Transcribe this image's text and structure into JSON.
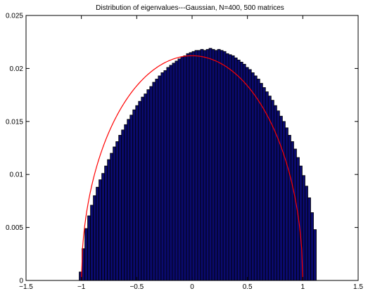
{
  "chart_data": {
    "type": "bar",
    "title": "Distribution of eigenvalues---Gaussian, N=400, 500 matrices",
    "xlabel": "",
    "ylabel": "",
    "xlim": [
      -1.5,
      1.5
    ],
    "ylim": [
      0,
      0.025
    ],
    "xticks": [
      -1.5,
      -1,
      -0.5,
      0,
      0.5,
      1,
      1.5
    ],
    "xtick_labels": [
      "−1.5",
      "−1",
      "−0.5",
      "0",
      "0.5",
      "1",
      "1.5"
    ],
    "yticks": [
      0,
      0.005,
      0.01,
      0.015,
      0.02,
      0.025
    ],
    "ytick_labels": [
      "0",
      "0.005",
      "0.01",
      "0.015",
      "0.02",
      "0.025"
    ],
    "grid": false,
    "legend": "none",
    "bar_color": "#0a0a6e",
    "bar_edge_color": "#000000",
    "bins": {
      "start": -1.02,
      "width": 0.0255,
      "values": [
        0.0008,
        0.003,
        0.0049,
        0.0061,
        0.0071,
        0.008,
        0.0088,
        0.0095,
        0.0101,
        0.0108,
        0.0114,
        0.012,
        0.0126,
        0.0131,
        0.0137,
        0.0142,
        0.0147,
        0.0152,
        0.0156,
        0.0161,
        0.0165,
        0.0169,
        0.0173,
        0.0176,
        0.018,
        0.0183,
        0.0187,
        0.019,
        0.0193,
        0.0196,
        0.0198,
        0.0201,
        0.0203,
        0.0205,
        0.0207,
        0.0209,
        0.0211,
        0.0212,
        0.0214,
        0.0215,
        0.0216,
        0.0217,
        0.0217,
        0.0218,
        0.0217,
        0.0218,
        0.0219,
        0.0218,
        0.0217,
        0.0218,
        0.0217,
        0.0216,
        0.0214,
        0.0213,
        0.0212,
        0.021,
        0.0208,
        0.0206,
        0.0204,
        0.0201,
        0.0199,
        0.0196,
        0.0193,
        0.019,
        0.0186,
        0.0182,
        0.0178,
        0.0174,
        0.017,
        0.0165,
        0.016,
        0.0155,
        0.015,
        0.0144,
        0.0137,
        0.0131,
        0.0124,
        0.0116,
        0.0108,
        0.0099,
        0.0089,
        0.0078,
        0.0064,
        0.0048
      ]
    },
    "curve": {
      "type": "line",
      "color": "#ff0000",
      "formula": "semicircle",
      "radius": 1.0,
      "peak": 0.0212
    }
  }
}
